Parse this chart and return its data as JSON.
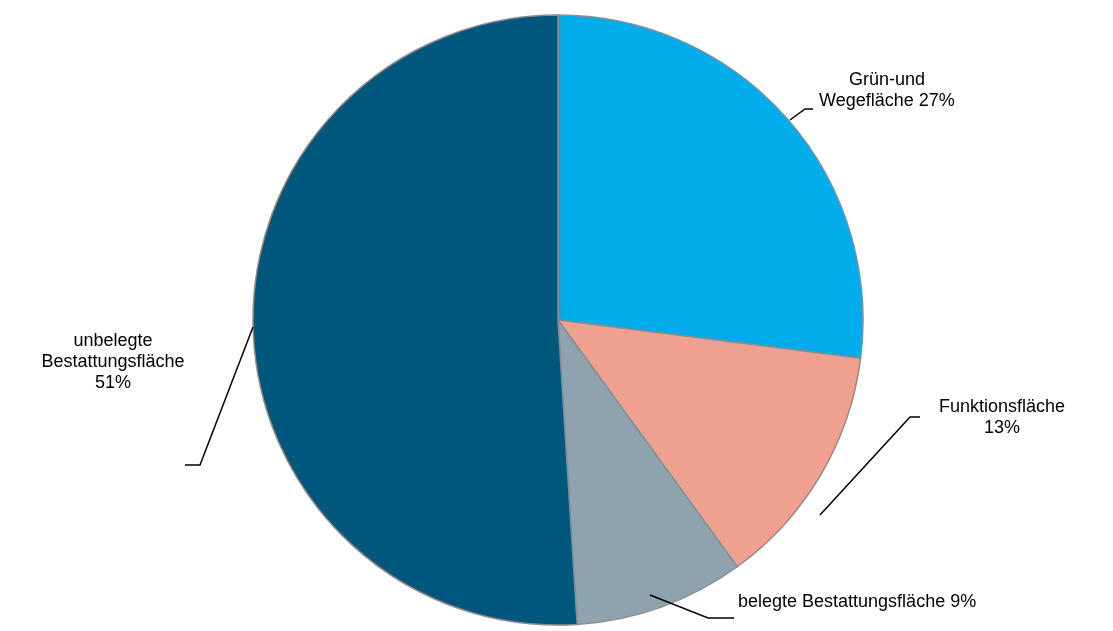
{
  "chart_data": {
    "type": "pie",
    "categories": [
      "Grün-und Wegefläche",
      "Funktionsfläche",
      "belegte Bestattungsfläche",
      "unbelegte Bestattungsfläche"
    ],
    "values": [
      27,
      13,
      9,
      51
    ],
    "value_labels": [
      "27%",
      "13%",
      "9%",
      "51%"
    ],
    "colors": [
      "#00adea",
      "#f0a08f",
      "#8ea3ae",
      "#00577e"
    ]
  }
}
